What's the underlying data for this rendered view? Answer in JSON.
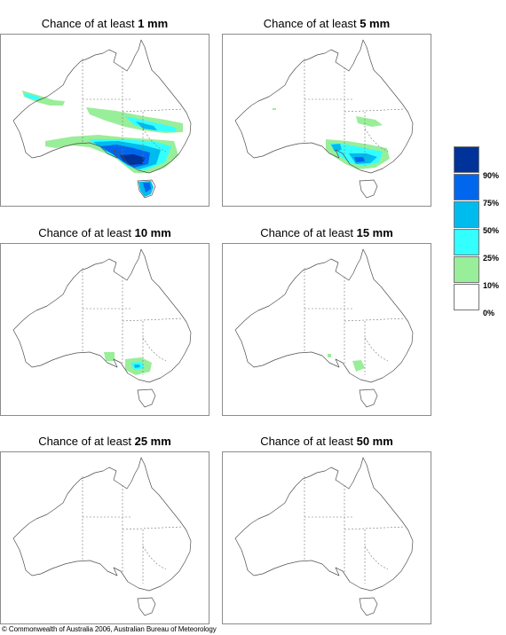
{
  "panels": [
    {
      "title_prefix": "Chance of at least",
      "amount": "1 mm",
      "level": 1
    },
    {
      "title_prefix": "Chance of at least",
      "amount": "5 mm",
      "level": 2
    },
    {
      "title_prefix": "Chance of at least",
      "amount": "10 mm",
      "level": 3
    },
    {
      "title_prefix": "Chance of at least",
      "amount": "15 mm",
      "level": 4
    },
    {
      "title_prefix": "Chance of at least",
      "amount": "25 mm",
      "level": 5
    },
    {
      "title_prefix": "Chance of at least",
      "amount": "50 mm",
      "level": 6
    }
  ],
  "legend": {
    "colors": [
      "#003399",
      "#0066ee",
      "#00bbee",
      "#33ffff",
      "#99ee99",
      "#ffffff"
    ],
    "ticks": [
      "90%",
      "75%",
      "50%",
      "25%",
      "10%",
      "0%"
    ]
  },
  "copyright": "© Commonwealth of Australia 2006, Australian Bureau of Meteorology"
}
